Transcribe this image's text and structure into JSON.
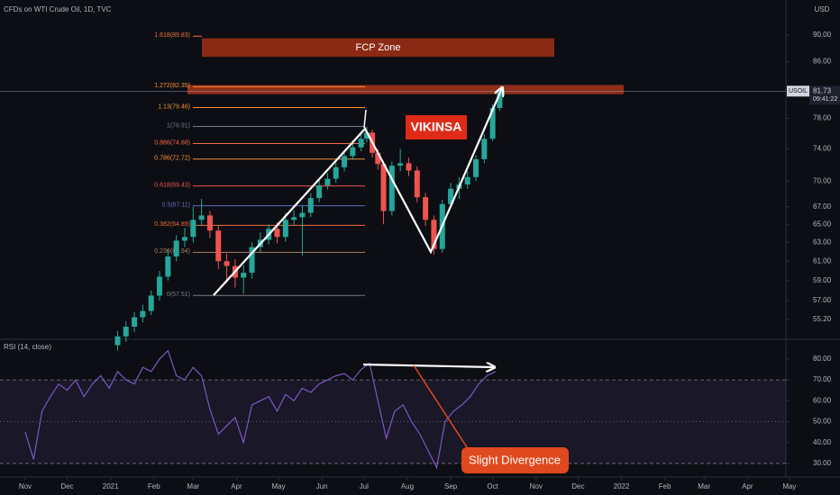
{
  "chart_data": [
    {
      "type": "candlestick",
      "title": "CFDs on WTI Crude Oil, 1D, TVC",
      "currency": "USD",
      "log_scale": true,
      "xlim": [
        -18,
        543.5
      ],
      "ylim": [
        53.5,
        95.6
      ],
      "yticks": [
        {
          "value": 55.2,
          "label": "55.20"
        },
        {
          "value": 57,
          "label": "57.00"
        },
        {
          "value": 59,
          "label": "59.00"
        },
        {
          "value": 61,
          "label": "61.00"
        },
        {
          "value": 63,
          "label": "63.00"
        },
        {
          "value": 65,
          "label": "65.00"
        },
        {
          "value": 67,
          "label": "67.00"
        },
        {
          "value": 70,
          "label": "70.00"
        },
        {
          "value": 74,
          "label": "74.00"
        },
        {
          "value": 78,
          "label": "78.00"
        },
        {
          "value": 86,
          "label": "86.00"
        },
        {
          "value": 90,
          "label": "90.00"
        }
      ],
      "xticks": [
        {
          "value": 0,
          "label": "Nov"
        },
        {
          "value": 30,
          "label": "Dec"
        },
        {
          "value": 61,
          "label": "2021"
        },
        {
          "value": 92,
          "label": "Feb"
        },
        {
          "value": 120,
          "label": "Mar"
        },
        {
          "value": 151,
          "label": "Apr"
        },
        {
          "value": 181,
          "label": "May"
        },
        {
          "value": 212,
          "label": "Jun"
        },
        {
          "value": 242,
          "label": "Jul"
        },
        {
          "value": 273,
          "label": "Aug"
        },
        {
          "value": 304,
          "label": "Sep"
        },
        {
          "value": 334,
          "label": "Oct"
        },
        {
          "value": 365,
          "label": "Nov"
        },
        {
          "value": 395,
          "label": "Dec"
        },
        {
          "value": 426,
          "label": "2022"
        },
        {
          "value": 457,
          "label": "Feb"
        },
        {
          "value": 485,
          "label": "Mar"
        },
        {
          "value": 516,
          "label": "Apr"
        },
        {
          "value": 546,
          "label": "May"
        }
      ],
      "up_color": "#26a69a",
      "down_color": "#ef5350",
      "x": [
        66,
        72,
        78,
        84,
        90,
        96,
        102,
        108,
        114,
        120,
        126,
        132,
        138,
        144,
        150,
        156,
        162,
        168,
        174,
        180,
        186,
        192,
        198,
        204,
        210,
        216,
        222,
        228,
        234,
        240,
        244,
        248,
        252,
        256,
        262,
        268,
        274,
        280,
        286,
        292,
        298,
        304,
        310,
        316,
        322,
        328,
        334,
        339
      ],
      "open": [
        52.8,
        53.6,
        54.5,
        55.4,
        56.0,
        57.5,
        59.4,
        61.5,
        63.2,
        63.6,
        65.5,
        66.0,
        64.3,
        61.0,
        60.5,
        59.3,
        59.8,
        62.5,
        63.3,
        64.5,
        63.6,
        65.5,
        65.8,
        66.3,
        68.0,
        69.5,
        70.3,
        71.7,
        73.1,
        74.2,
        75.3,
        76.1,
        73.5,
        72.1,
        66.5,
        71.9,
        72.2,
        71.3,
        68.1,
        65.5,
        62.3,
        67.3,
        69.1,
        69.6,
        70.5,
        72.7,
        75.3,
        79.4
      ],
      "high": [
        54.1,
        55.0,
        55.9,
        56.6,
        58.0,
        60.0,
        62.2,
        63.8,
        64.6,
        67.0,
        67.9,
        66.5,
        64.9,
        61.8,
        61.2,
        60.6,
        63.0,
        64.1,
        65.0,
        65.2,
        66.3,
        66.6,
        67.2,
        68.6,
        70.1,
        71.0,
        72.3,
        73.8,
        74.9,
        76.0,
        76.9,
        76.5,
        74.0,
        72.5,
        72.4,
        74.0,
        72.9,
        71.8,
        68.6,
        66.0,
        67.8,
        69.8,
        70.5,
        71.2,
        73.2,
        75.9,
        79.9,
        82.1
      ],
      "low": [
        52.3,
        53.1,
        54.0,
        54.9,
        55.6,
        57.0,
        59.0,
        61.0,
        62.5,
        63.0,
        64.8,
        63.5,
        60.2,
        58.8,
        58.3,
        57.7,
        59.2,
        61.9,
        62.8,
        62.9,
        63.1,
        64.9,
        61.6,
        65.8,
        67.5,
        69.0,
        69.8,
        71.2,
        72.6,
        73.7,
        74.8,
        72.9,
        71.4,
        65.0,
        66.0,
        71.2,
        70.6,
        67.5,
        64.8,
        61.7,
        61.9,
        66.8,
        67.9,
        69.1,
        70.0,
        72.2,
        75.0,
        79.0
      ],
      "close": [
        53.6,
        54.5,
        55.4,
        56.0,
        57.5,
        59.4,
        61.5,
        63.2,
        63.6,
        65.5,
        66.0,
        64.3,
        61.0,
        60.5,
        59.3,
        59.8,
        62.5,
        63.3,
        64.5,
        63.6,
        65.5,
        65.8,
        66.3,
        68.0,
        69.5,
        70.3,
        71.7,
        73.1,
        74.2,
        75.3,
        76.1,
        73.5,
        72.1,
        66.5,
        71.9,
        72.2,
        71.3,
        68.1,
        65.5,
        62.3,
        67.3,
        69.1,
        69.6,
        70.5,
        72.7,
        75.3,
        79.4,
        81.7
      ],
      "symbol_label": "USOIL",
      "last_price": 81.73,
      "countdown": "09:41:22",
      "fib_levels": [
        {
          "label": "1.618(89.83)",
          "value": 89.83,
          "color": "#f0743f"
        },
        {
          "label": "1.272(82.35)",
          "value": 82.35,
          "color": "#f7913a"
        },
        {
          "label": "1.13(79.46)",
          "value": 79.46,
          "color": "#f7913a"
        },
        {
          "label": "1(76.91)",
          "value": 76.91,
          "color": "#787b86"
        },
        {
          "label": "0.886(74.68)",
          "value": 74.68,
          "color": "#f26a4a"
        },
        {
          "label": "0.786(72.72)",
          "value": 72.72,
          "color": "#f7913a"
        },
        {
          "label": "0.618(69.43)",
          "value": 69.43,
          "color": "#ef5350"
        },
        {
          "label": "0.5(67.11)",
          "value": 67.11,
          "color": "#5c6bc0"
        },
        {
          "label": "0.382(64.89)",
          "value": 64.89,
          "color": "#ef6c3a"
        },
        {
          "label": "0.236(61.94)",
          "value": 61.94,
          "color": "#b08060"
        },
        {
          "label": "0(57.51)",
          "value": 57.51,
          "color": "#787b86"
        }
      ],
      "zones": [
        {
          "label": "FCP Zone",
          "top": 89.5,
          "bottom": 86.7
        },
        {
          "top": 82.6,
          "bottom": 81.3
        }
      ],
      "annotations": [
        "VIKINSA"
      ]
    },
    {
      "type": "line",
      "title": "RSI (14, close)",
      "xlim": [
        -18,
        543.5
      ],
      "ylim": [
        23.5,
        89
      ],
      "yticks": [
        {
          "value": 30,
          "label": "30.00"
        },
        {
          "value": 40,
          "label": "40.00"
        },
        {
          "value": 50,
          "label": "50.00"
        },
        {
          "value": 60,
          "label": "60.00"
        },
        {
          "value": 70,
          "label": "70.00"
        },
        {
          "value": 80,
          "label": "80.00"
        }
      ],
      "bands": {
        "upper": 70,
        "middle": 50,
        "lower": 30
      },
      "color": "#7e57c2",
      "x": [
        0,
        6,
        12,
        18,
        24,
        30,
        36,
        42,
        48,
        54,
        60,
        66,
        72,
        78,
        84,
        90,
        96,
        102,
        108,
        114,
        120,
        126,
        132,
        138,
        144,
        150,
        156,
        162,
        168,
        174,
        180,
        186,
        192,
        198,
        204,
        210,
        216,
        222,
        228,
        234,
        240,
        246,
        252,
        258,
        264,
        270,
        276,
        282,
        288,
        294,
        300,
        306,
        312,
        318,
        324,
        330,
        336
      ],
      "values": [
        45,
        32,
        55,
        62,
        68,
        65,
        70,
        62,
        68,
        72,
        66,
        74,
        70,
        68,
        76,
        74,
        80,
        84,
        72,
        70,
        76,
        72,
        56,
        44,
        48,
        52,
        40,
        58,
        60,
        62,
        55,
        63,
        60,
        66,
        64,
        68,
        70,
        72,
        73,
        70,
        75,
        78,
        60,
        42,
        55,
        58,
        50,
        44,
        36,
        28,
        50,
        55,
        58,
        62,
        68,
        72,
        74
      ],
      "annotations": [
        "Slight Divergence"
      ]
    }
  ]
}
